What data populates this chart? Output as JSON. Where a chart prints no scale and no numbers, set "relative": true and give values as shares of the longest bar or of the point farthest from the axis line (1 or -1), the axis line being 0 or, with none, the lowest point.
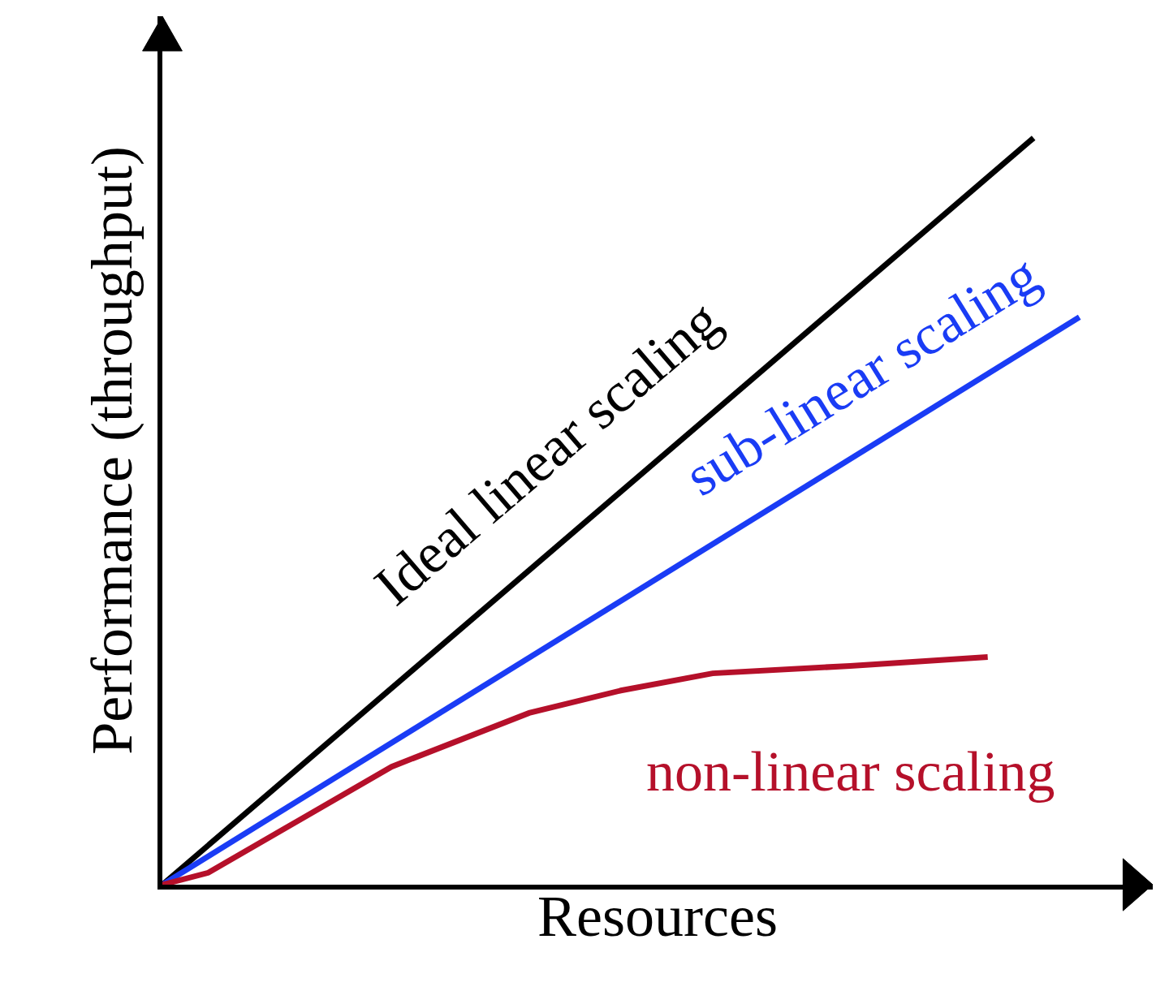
{
  "chart_data": {
    "type": "line",
    "relative": true,
    "xlabel": "Resources",
    "ylabel": "Performance (throughput)",
    "categories": [
      null,
      null,
      null,
      null,
      null,
      null,
      null,
      null,
      null,
      null,
      null,
      null,
      null,
      null,
      null,
      null,
      null,
      null,
      null,
      null,
      null
    ],
    "series": [
      {
        "name": "Ideal linear scaling",
        "color": "#000000",
        "values": [
          0,
          null,
          null,
          null,
          null,
          null,
          null,
          null,
          null,
          null,
          null,
          null,
          null,
          null,
          null,
          null,
          null,
          null,
          null,
          1,
          null
        ]
      },
      {
        "name": "sub-linear scaling",
        "color": "#1a3cf5",
        "values": [
          0,
          null,
          null,
          null,
          null,
          null,
          null,
          null,
          null,
          null,
          null,
          null,
          null,
          null,
          null,
          null,
          null,
          null,
          null,
          null,
          0.76
        ]
      },
      {
        "name": "non-linear scaling",
        "color": "#b5102a",
        "values": [
          0,
          0.016,
          null,
          0.087,
          null,
          0.158,
          null,
          null,
          0.23,
          null,
          0.26,
          null,
          0.283,
          null,
          null,
          0.293,
          null,
          null,
          0.305,
          null,
          null
        ]
      }
    ],
    "legend": false,
    "marker": "none",
    "line_style": "solid"
  }
}
